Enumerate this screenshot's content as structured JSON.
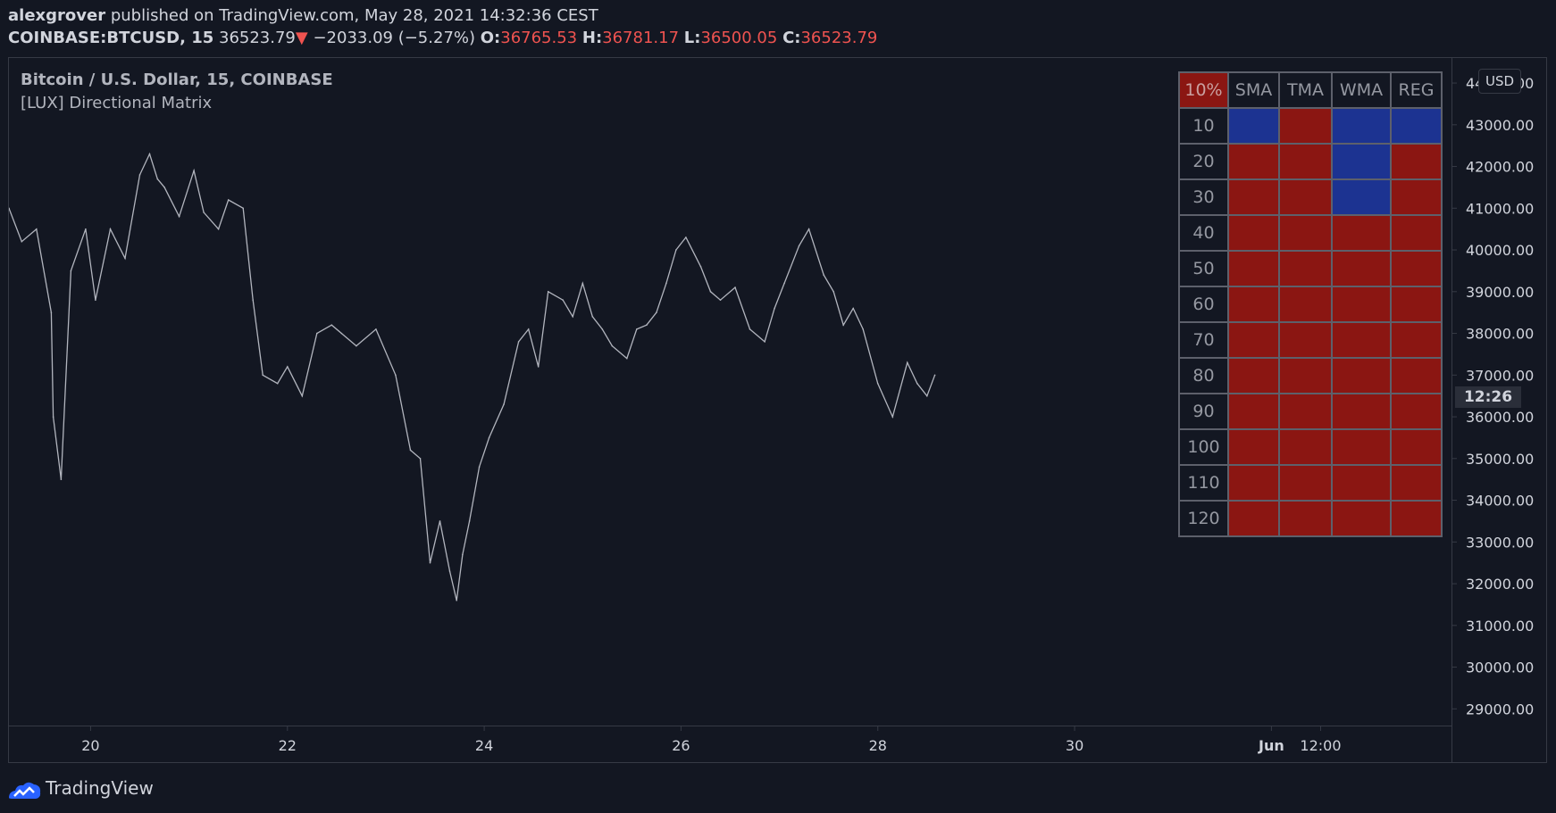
{
  "header": {
    "author": "alexgrover",
    "published_text": "published on TradingView.com, May 28, 2021 14:32:36 CEST",
    "symbol": "COINBASE:BTCUSD, 15",
    "last_price": "36523.79",
    "change_arrow": "▼",
    "change": "−2033.09 (−5.27%)",
    "open_label": "O:",
    "open": "36765.53",
    "high_label": "H:",
    "high": "36781.17",
    "low_label": "L:",
    "low": "36500.05",
    "close_label": "C:",
    "close": "36523.79"
  },
  "legend": {
    "series_title": "Bitcoin / U.S. Dollar, 15, COINBASE",
    "indicator": "[LUX] Directional Matrix"
  },
  "price_scale": {
    "currency": "USD",
    "countdown": "12:26"
  },
  "brand": {
    "name": "TradingView"
  },
  "colors": {
    "background": "#131722",
    "price_line": "#b2b5be",
    "bearish": "#8b1612",
    "bullish": "#1c3391",
    "down": "#ef5350"
  },
  "matrix": {
    "corner": "10%",
    "columns": [
      "SMA",
      "TMA",
      "WMA",
      "REG"
    ],
    "rows": [
      {
        "label": "10",
        "cells": [
          "bull",
          "bear",
          "bull",
          "bull"
        ]
      },
      {
        "label": "20",
        "cells": [
          "bear",
          "bear",
          "bull",
          "bear"
        ]
      },
      {
        "label": "30",
        "cells": [
          "bear",
          "bear",
          "bull",
          "bear"
        ]
      },
      {
        "label": "40",
        "cells": [
          "bear",
          "bear",
          "bear",
          "bear"
        ]
      },
      {
        "label": "50",
        "cells": [
          "bear",
          "bear",
          "bear",
          "bear"
        ]
      },
      {
        "label": "60",
        "cells": [
          "bear",
          "bear",
          "bear",
          "bear"
        ]
      },
      {
        "label": "70",
        "cells": [
          "bear",
          "bear",
          "bear",
          "bear"
        ]
      },
      {
        "label": "80",
        "cells": [
          "bear",
          "bear",
          "bear",
          "bear"
        ]
      },
      {
        "label": "90",
        "cells": [
          "bear",
          "bear",
          "bear",
          "bear"
        ]
      },
      {
        "label": "100",
        "cells": [
          "bear",
          "bear",
          "bear",
          "bear"
        ]
      },
      {
        "label": "110",
        "cells": [
          "bear",
          "bear",
          "bear",
          "bear"
        ]
      },
      {
        "label": "120",
        "cells": [
          "bear",
          "bear",
          "bear",
          "bear"
        ]
      }
    ]
  },
  "chart_data": {
    "type": "line",
    "title": "Bitcoin / U.S. Dollar, 15, COINBASE",
    "ylim": [
      28600,
      44600
    ],
    "y_ticks": [
      "29000.00",
      "30000.00",
      "31000.00",
      "32000.00",
      "33000.00",
      "34000.00",
      "35000.00",
      "36000.00",
      "37000.00",
      "38000.00",
      "39000.00",
      "40000.00",
      "41000.00",
      "42000.00",
      "43000.00",
      "44000.00"
    ],
    "x_ticks": [
      {
        "label": "20",
        "day": 20
      },
      {
        "label": "22",
        "day": 22
      },
      {
        "label": "24",
        "day": 24
      },
      {
        "label": "26",
        "day": 26
      },
      {
        "label": "28",
        "day": 28
      },
      {
        "label": "30",
        "day": 30
      },
      {
        "label": "Jun",
        "day": 32
      },
      {
        "label": "12:00",
        "day": 32.5
      }
    ],
    "xlim": [
      19.17,
      33.83
    ],
    "series": [
      {
        "x": [
          19.17,
          19.3,
          19.45,
          19.6,
          19.62,
          19.7,
          19.8,
          19.95,
          20.05,
          20.2,
          20.35,
          20.5,
          20.6,
          20.68,
          20.75,
          20.9,
          21.05,
          21.15,
          21.3,
          21.4,
          21.55,
          21.65,
          21.75,
          21.9,
          22.0,
          22.15,
          22.3,
          22.45,
          22.55,
          22.7,
          22.9,
          23.1,
          23.25,
          23.35,
          23.45,
          23.55,
          23.65,
          23.72,
          23.78,
          23.85,
          23.95,
          24.05,
          24.2,
          24.35,
          24.45,
          24.55,
          24.65,
          24.8,
          24.9,
          25.0,
          25.1,
          25.2,
          25.3,
          25.45,
          25.55,
          25.65,
          25.75,
          25.85,
          25.95,
          26.05,
          26.2,
          26.3,
          26.4,
          26.55,
          26.7,
          26.85,
          26.95,
          27.05,
          27.2,
          27.3,
          27.45,
          27.55,
          27.65,
          27.75,
          27.85,
          28.0,
          28.15,
          28.3,
          28.4,
          28.5,
          28.58
        ],
        "y": [
          41000,
          40200,
          40500,
          38500,
          36000,
          34500,
          39500,
          40500,
          38800,
          40500,
          39800,
          41800,
          42300,
          41700,
          41500,
          40800,
          41900,
          40900,
          40500,
          41200,
          41000,
          38800,
          37000,
          36800,
          37200,
          36500,
          38000,
          38200,
          38000,
          37700,
          38100,
          37000,
          35200,
          35000,
          32500,
          33500,
          32300,
          31600,
          32700,
          33500,
          34800,
          35500,
          36300,
          37800,
          38100,
          37200,
          39000,
          38800,
          38400,
          39200,
          38400,
          38100,
          37700,
          37400,
          38100,
          38200,
          38500,
          39200,
          40000,
          40300,
          39600,
          39000,
          38800,
          39100,
          38100,
          37800,
          38600,
          39200,
          40100,
          40500,
          39400,
          39000,
          38200,
          38600,
          38100,
          36800,
          36000,
          37300,
          36800,
          36500,
          37000
        ]
      }
    ]
  }
}
